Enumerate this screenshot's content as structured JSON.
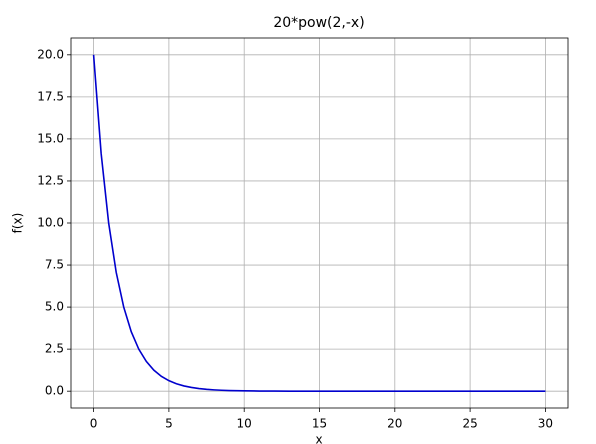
{
  "chart_data": {
    "type": "line",
    "title": "20*pow(2,-x)",
    "x_label": "x",
    "y_label": "f(x)",
    "x": [
      0,
      0.5,
      1,
      1.5,
      2,
      2.5,
      3,
      3.5,
      4,
      4.5,
      5,
      5.5,
      6,
      6.5,
      7,
      7.5,
      8,
      8.5,
      9,
      9.5,
      10,
      11,
      12,
      13,
      14,
      15,
      20,
      25,
      30
    ],
    "series": [
      {
        "name": "20*pow(2,-x)",
        "color": "#0000cd",
        "values": [
          20,
          14.142,
          10,
          7.071,
          5,
          3.536,
          2.5,
          1.768,
          1.25,
          0.884,
          0.625,
          0.442,
          0.313,
          0.221,
          0.156,
          0.11,
          0.078,
          0.055,
          0.039,
          0.028,
          0.02,
          0.01,
          0.005,
          0.002,
          0.001,
          0.001,
          0,
          0,
          0
        ]
      }
    ],
    "xlim": [
      -1.5,
      31.5
    ],
    "ylim": [
      -1,
      21
    ],
    "xticks": [
      0,
      5,
      10,
      15,
      20,
      25,
      30
    ],
    "yticks": [
      {
        "value": 0,
        "label": "0.0"
      },
      {
        "value": 2.5,
        "label": "2.5"
      },
      {
        "value": 5,
        "label": "5.0"
      },
      {
        "value": 7.5,
        "label": "7.5"
      },
      {
        "value": 10,
        "label": "10.0"
      },
      {
        "value": 12.5,
        "label": "12.5"
      },
      {
        "value": 15,
        "label": "15.0"
      },
      {
        "value": 17.5,
        "label": "17.5"
      },
      {
        "value": 20,
        "label": "20.0"
      }
    ],
    "grid": true
  }
}
